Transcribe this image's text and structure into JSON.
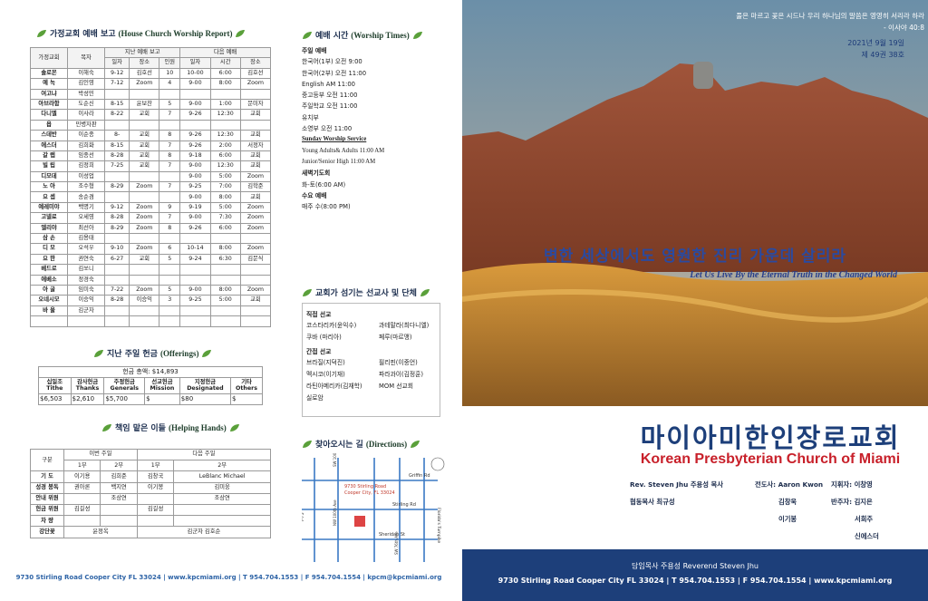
{
  "left": {
    "house_church": {
      "title": "가정교회 예배 보고",
      "title_en": "(House Church Worship Report)",
      "header": {
        "church": "가정교회",
        "leader": "목자",
        "last": "지난 예배 보고",
        "next": "다음 예배",
        "last_cols": [
          "일자",
          "장소",
          "인원"
        ],
        "next_cols": [
          "일자",
          "시간",
          "장소"
        ]
      },
      "rows": [
        [
          "솔로몬",
          "이해숙",
          "9-12",
          "김호선",
          "10",
          "10-00",
          "6:00",
          "김호선"
        ],
        [
          "예 녹",
          "김인영",
          "7-12",
          "Zoom",
          "4",
          "9-00",
          "8:00",
          "Zoom"
        ],
        [
          "여고냐",
          "박성민",
          null,
          null,
          null,
          null,
          null,
          null
        ],
        [
          "아브라함",
          "도순신",
          "8-15",
          "윤보찬",
          "5",
          "9-00",
          "1:00",
          "문미자"
        ],
        [
          "다니엘",
          "이사라",
          "8-22",
          "교회",
          "7",
          "9-26",
          "12:30",
          "교회"
        ],
        [
          "욥",
          "민병자판",
          null,
          null,
          null,
          null,
          null,
          null
        ],
        [
          "스데반",
          "이순종",
          "8-",
          "교회",
          "8",
          "9-26",
          "12:30",
          "교회"
        ],
        [
          "에스더",
          "김희화",
          "8-15",
          "교회",
          "7",
          "9-26",
          "2:00",
          "서정자"
        ],
        [
          "갈 렙",
          "임종선",
          "8-28",
          "교회",
          "8",
          "9-18",
          "6:00",
          "교회"
        ],
        [
          "빌 립",
          "김정희",
          "7-25",
          "교회",
          "7",
          "9-00",
          "12:30",
          "교회"
        ],
        [
          "디모데",
          "이성업",
          null,
          null,
          null,
          "9-00",
          "5:00",
          "Zoom"
        ],
        [
          "노 아",
          "조수형",
          "8-29",
          "Zoom",
          "7",
          "9-25",
          "7:00",
          "김학준"
        ],
        [
          "요 셉",
          "송순겸",
          null,
          null,
          null,
          "9-00",
          "8:00",
          "교회"
        ],
        [
          "예레미야",
          "백명기",
          "9-12",
          "Zoom",
          "9",
          "9-19",
          "5:00",
          "Zoom"
        ],
        [
          "고넬료",
          "오세영",
          "8-28",
          "Zoom",
          "7",
          "9-00",
          "7:30",
          "Zoom"
        ],
        [
          "엘리야",
          "최선아",
          "8-29",
          "Zoom",
          "8",
          "9-26",
          "6:00",
          "Zoom"
        ],
        [
          "삼 손",
          "김용태",
          null,
          null,
          null,
          null,
          null,
          null
        ],
        [
          "디 모",
          "오석우",
          "9-10",
          "Zoom",
          "6",
          "10-14",
          "8:00",
          "Zoom"
        ],
        [
          "요 한",
          "권연숙",
          "6-27",
          "교회",
          "5",
          "9-24",
          "6:30",
          "김문식"
        ],
        [
          "베드로",
          "김쏘니",
          null,
          null,
          null,
          null,
          null,
          null
        ],
        [
          "에베소",
          "정경숙",
          null,
          null,
          null,
          null,
          null,
          null
        ],
        [
          "아 굴",
          "임미숙",
          "7-22",
          "Zoom",
          "5",
          "9-00",
          "8:00",
          "Zoom"
        ],
        [
          "오네시모",
          "이승익",
          "8-28",
          "이승익",
          "3",
          "9-25",
          "5:00",
          "교회"
        ],
        [
          "바 울",
          "김군자",
          null,
          null,
          null,
          null,
          null,
          null
        ],
        [
          null,
          null,
          null,
          null,
          null,
          null,
          null,
          null
        ]
      ]
    },
    "offerings": {
      "title": "지난 주일 헌금",
      "title_en": "(Offerings)",
      "total": "헌금 총액: $14,893",
      "columns": [
        {
          "kr": "십일조",
          "en": "Tithe"
        },
        {
          "kr": "감사헌금",
          "en": "Thanks"
        },
        {
          "kr": "주정헌금",
          "en": "Generals"
        },
        {
          "kr": "선교헌금",
          "en": "Mission"
        },
        {
          "kr": "지정헌금",
          "en": "Designated"
        },
        {
          "kr": "기타",
          "en": "Others"
        }
      ],
      "amounts": [
        "$6,503",
        "$2,610",
        "$5,700",
        "$",
        "$80",
        "$"
      ]
    },
    "helping_hands": {
      "title": "책임 맡은 이들",
      "title_en": "(Helping Hands)",
      "header": {
        "role": "구분",
        "this_week": "이번 주일",
        "next_week": "다음 주일",
        "parts": [
          "1부",
          "2부",
          "1부",
          "2부"
        ]
      },
      "rows": [
        [
          "기 도",
          "이기용",
          "김희준",
          "김창국",
          "LeBlanc Michael"
        ],
        [
          "성경 봉독",
          "권아론",
          "백지연",
          "이기봉",
          "김미웅"
        ],
        [
          "안내 위원",
          null,
          "조상연",
          null,
          "조상연"
        ],
        [
          "헌금 위원",
          "김길성",
          null,
          "김길성",
          null
        ],
        [
          "차 량",
          null,
          null,
          null,
          null
        ],
        [
          "강단꽃",
          "윤정옥",
          "김군자 김호순"
        ]
      ]
    },
    "footer": "9730 Stirling Road Cooper City FL 33024 | www.kpcmiami.org | T 954.704.1553 | F 954.704.1554 | kpcm@kpcmiami.org"
  },
  "middle": {
    "worship_times": {
      "title": "예배 시간",
      "title_en": "(Worship Times)",
      "lines": [
        {
          "text": "주일 예배",
          "bold": true
        },
        {
          "text": "한국어(1부) 오전  9:00"
        },
        {
          "text": "한국어(2부) 오전 11:00"
        },
        {
          "text": "English AM 11:00"
        },
        {
          "text": "중고등부 오전 11:00"
        },
        {
          "text": "주일학교 오전 11:00"
        },
        {
          "text": "유치부"
        },
        {
          "text": "소영부    오전 11:00"
        },
        {
          "text": "Sunday Worship Service",
          "bold": true,
          "underline": true,
          "serif": true
        },
        {
          "text": "Young Adults& Adults  11:00 AM",
          "serif": true
        },
        {
          "text": "Junior/Senior High 11:00 AM",
          "serif": true
        },
        {
          "text": "새벽기도회",
          "bold": true
        },
        {
          "text": "화-토(6:00 AM)"
        },
        {
          "text": "수요 예배",
          "bold": true
        },
        {
          "text": "매주 수(8:00 PM)"
        }
      ]
    },
    "missionaries": {
      "title": "교회가 섬기는 선교사 및 단체",
      "groups": [
        {
          "heading": "직접 선교",
          "items": [
            "코스타리카(윤익수)",
            "과테말라(최다니엘)",
            "쿠바 (마리아)",
            "페루(마르맹)"
          ]
        },
        {
          "heading": "간접 선교",
          "items": [
            "브라질(지덕진)",
            "필리핀(이중언)",
            "멕시코(이기재)",
            "파라과이(김정훈)",
            "라틴아메리카(김재학)",
            "MOM 선교회",
            "실로암"
          ]
        }
      ]
    },
    "directions": {
      "title": "찾아오시는 길",
      "title_en": "(Directions)",
      "map_labels": [
        "Griffin Rd",
        "Stirling Rd",
        "Sheridan St",
        "I-75",
        "Florida's Turnpike",
        "SW 100th Ave",
        "NW 100th Ave",
        "SW 76th Ave",
        "9730 Stirling Road",
        "Cooper City, FL 33024"
      ]
    }
  },
  "right": {
    "verse": "풀은 마르고 꽃은 시드나 우리 하나님의 말씀은 영영히 서리라 하라",
    "verse_ref": "- 이사야 40:8",
    "date": "2021년 9월 19일",
    "issue": "제 49권 38호",
    "banner_kr": "변한 세상에서도 영원한 진리 가운데 살리라",
    "banner_en": "Let Us Live By the Eternal Truth in the Changed World",
    "church_kr": "마이아미한인장로교회",
    "church_en": "Korean Presbyterian Church of Miami",
    "staff": [
      [
        "Rev. Steven Jhu 주용성 목사",
        "협동목사 최규성"
      ],
      [
        "전도사: Aaron Kwon",
        "김창욱",
        "이기봉"
      ],
      [
        "지휘자: 이창영",
        "반주자: 김지은",
        "서희주",
        "신에스더"
      ]
    ],
    "footer_pastor": "담임목사 주용성  Reverend Steven Jhu",
    "footer_address": "9730 Stirling Road Cooper City FL 33024  |  T 954.704.1553  |  F 954.704.1554  |  www.kpcmiami.org"
  }
}
